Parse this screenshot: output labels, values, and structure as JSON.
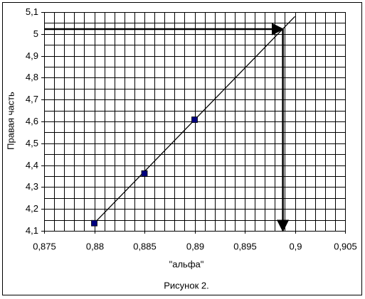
{
  "chart_data": {
    "type": "scatter",
    "caption": "Рисунок 2.",
    "x_label": "\"альфа\"",
    "y_label": "Правая часть",
    "x": [
      0.88,
      0.885,
      0.89
    ],
    "series": [
      {
        "color": "#000080",
        "values": [
          4.135,
          4.362,
          4.608
        ]
      }
    ],
    "trendline": {
      "color": "#000000",
      "x": [
        0.88,
        0.9
      ],
      "values": [
        4.135,
        5.08
      ]
    },
    "arrow": {
      "color": "#000000",
      "x": 0.8988,
      "y": 5.022
    },
    "xlim": [
      0.875,
      0.905
    ],
    "xticks": [
      {
        "value": 0.875,
        "label": "0,875"
      },
      {
        "value": 0.88,
        "label": "0,88"
      },
      {
        "value": 0.885,
        "label": "0,885"
      },
      {
        "value": 0.89,
        "label": "0,89"
      },
      {
        "value": 0.895,
        "label": "0,895"
      },
      {
        "value": 0.9,
        "label": "0,9"
      },
      {
        "value": 0.905,
        "label": "0,905"
      }
    ],
    "ylim": [
      4.1,
      5.1
    ],
    "yticks": [
      {
        "value": 4.1,
        "label": "4,1"
      },
      {
        "value": 4.2,
        "label": "4,2"
      },
      {
        "value": 4.3,
        "label": "4,3"
      },
      {
        "value": 4.4,
        "label": "4,4"
      },
      {
        "value": 4.5,
        "label": "4,5"
      },
      {
        "value": 4.6,
        "label": "4,6"
      },
      {
        "value": 4.7,
        "label": "4,7"
      },
      {
        "value": 4.8,
        "label": "4,8"
      },
      {
        "value": 4.9,
        "label": "4,9"
      },
      5,
      {
        "value": 5.1,
        "label": "5,1"
      }
    ],
    "grid": true,
    "minor_grid": {
      "x": 5,
      "y": 2
    }
  }
}
